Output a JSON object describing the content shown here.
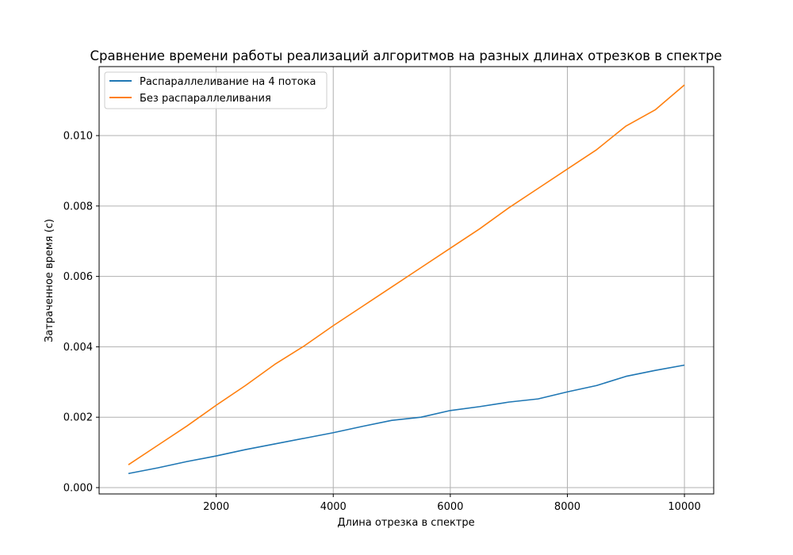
{
  "chart_data": {
    "type": "line",
    "title": "Сравнение времени работы реализаций алгоритмов на разных длинах отрезков в спектре",
    "xlabel": "Длина отрезка в спектре",
    "ylabel": "Затраченное время (с)",
    "xlim": [
      0,
      10500
    ],
    "ylim": [
      -0.00018,
      0.01196
    ],
    "x_ticks": [
      2000,
      4000,
      6000,
      8000,
      10000
    ],
    "y_ticks": [
      0.0,
      0.002,
      0.004,
      0.006,
      0.008,
      0.01
    ],
    "x_tick_labels": [
      "2000",
      "4000",
      "6000",
      "8000",
      "10000"
    ],
    "y_tick_labels": [
      "0.000",
      "0.002",
      "0.004",
      "0.006",
      "0.008",
      "0.010"
    ],
    "grid": true,
    "legend_position": "top-left",
    "x": [
      500,
      1000,
      1500,
      2000,
      2500,
      3000,
      3500,
      4000,
      4500,
      5000,
      5500,
      6000,
      6500,
      7000,
      7500,
      8000,
      8500,
      9000,
      9500,
      10000
    ],
    "series": [
      {
        "name": "Распараллеливание на 4 потока",
        "color": "#1f77b4",
        "values": [
          0.0004,
          0.00056,
          0.00074,
          0.0009,
          0.00108,
          0.00124,
          0.0014,
          0.00156,
          0.00174,
          0.00191,
          0.002,
          0.00219,
          0.0023,
          0.00243,
          0.00252,
          0.00272,
          0.0029,
          0.00316,
          0.00333,
          0.00348
        ]
      },
      {
        "name": "Без распараллеливания",
        "color": "#ff7f0e",
        "values": [
          0.00065,
          0.0012,
          0.00175,
          0.00234,
          0.0029,
          0.0035,
          0.00402,
          0.0046,
          0.00515,
          0.0057,
          0.00625,
          0.0068,
          0.00735,
          0.00795,
          0.0085,
          0.00905,
          0.0096,
          0.01027,
          0.01073,
          0.01144
        ]
      }
    ]
  }
}
